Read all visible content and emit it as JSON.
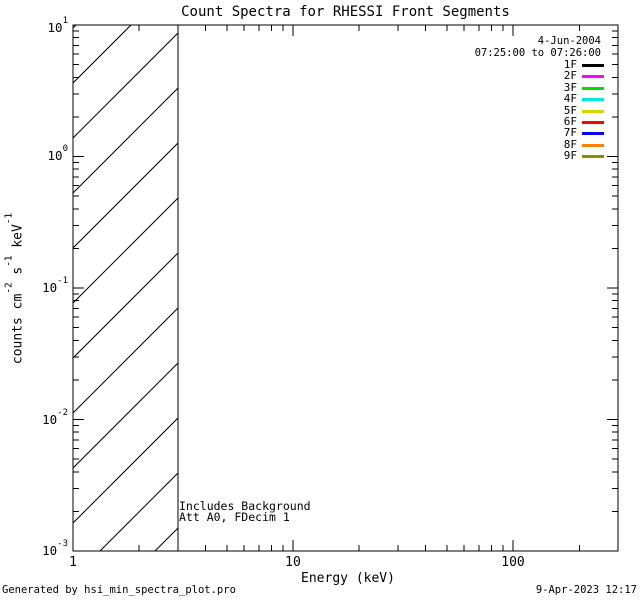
{
  "chart_data": {
    "type": "line",
    "title": "Count Spectra for RHESSI Front Segments",
    "xlabel": "Energy (keV)",
    "ylabel": "counts cm^-2 s^-1 keV^-1",
    "ylabel_parts": [
      "counts cm",
      "-2",
      " s",
      "-1",
      " keV",
      "-1"
    ],
    "xscale": "log",
    "yscale": "log",
    "xlim": [
      1,
      300
    ],
    "ylim": [
      0.001,
      10
    ],
    "grid": false,
    "x_major_ticks": [
      {
        "label": "1",
        "value": 1
      },
      {
        "label": "10",
        "value": 10
      },
      {
        "label": "100",
        "value": 100
      }
    ],
    "y_major_ticks": [
      {
        "base": "10",
        "exp": "1",
        "value": 10
      },
      {
        "base": "10",
        "exp": "0",
        "value": 1
      },
      {
        "base": "10",
        "exp": "-1",
        "value": 0.1
      },
      {
        "base": "10",
        "exp": "-2",
        "value": 0.01
      },
      {
        "base": "10",
        "exp": "-3",
        "value": 0.001
      }
    ],
    "legend": {
      "position": "top-right",
      "date": "4-Jun-2004",
      "time_range": "07:25:00 to 07:26:00"
    },
    "series": [
      {
        "name": "1F",
        "color": "#000000",
        "values": []
      },
      {
        "name": "2F",
        "color": "#FF00FF",
        "values": []
      },
      {
        "name": "3F",
        "color": "#00E000",
        "values": []
      },
      {
        "name": "4F",
        "color": "#00E5E5",
        "values": []
      },
      {
        "name": "5F",
        "color": "#D4D400",
        "values": []
      },
      {
        "name": "6F",
        "color": "#FF0000",
        "values": []
      },
      {
        "name": "7F",
        "color": "#0000FF",
        "values": []
      },
      {
        "name": "8F",
        "color": "#FF8000",
        "values": []
      },
      {
        "name": "9F",
        "color": "#8C8C00",
        "values": []
      }
    ],
    "annotations": [
      "Includes Background",
      "Att A0, FDecim 1"
    ],
    "hatched_region": {
      "x_range": [
        1,
        3
      ],
      "y_range": [
        0.001,
        10
      ],
      "style": "diagonal-hatch"
    }
  },
  "footer": {
    "left": "Generated by hsi_min_spectra_plot.pro",
    "right": "9-Apr-2023 12:17"
  }
}
